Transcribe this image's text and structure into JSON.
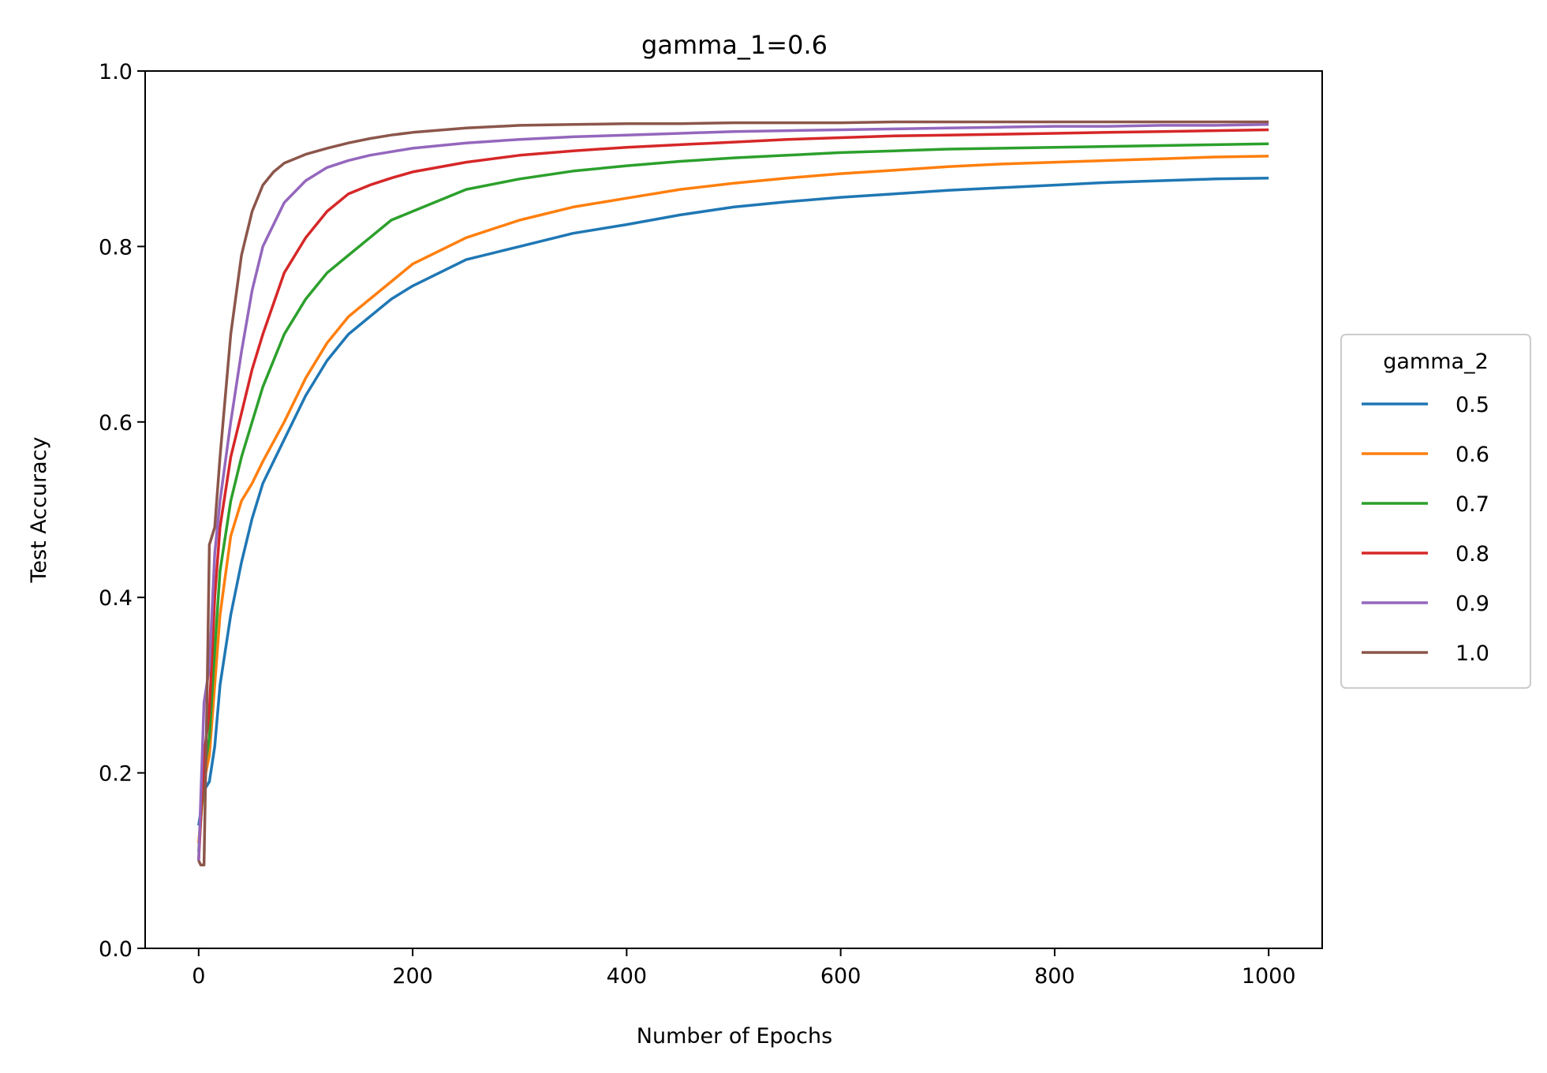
{
  "chart_data": {
    "type": "line",
    "title": "gamma_1=0.6",
    "xlabel": "Number of Epochs",
    "ylabel": "Test Accuracy",
    "xlim": [
      -50,
      1050
    ],
    "ylim": [
      0.0,
      1.0
    ],
    "xticks": [
      0,
      200,
      400,
      600,
      800,
      1000
    ],
    "yticks": [
      0.0,
      0.2,
      0.4,
      0.6,
      0.8,
      1.0
    ],
    "xtick_labels": [
      "0",
      "200",
      "400",
      "600",
      "800",
      "1000"
    ],
    "ytick_labels": [
      "0.0",
      "0.2",
      "0.4",
      "0.6",
      "0.8",
      "1.0"
    ],
    "grid": false,
    "legend": {
      "title": "gamma_2",
      "placement": "center-right outside"
    },
    "series": [
      {
        "name": "0.5",
        "color": "#1f77b4",
        "x": [
          0,
          5,
          10,
          15,
          20,
          30,
          40,
          50,
          60,
          80,
          100,
          120,
          140,
          160,
          180,
          200,
          250,
          300,
          350,
          400,
          450,
          500,
          550,
          600,
          650,
          700,
          750,
          800,
          850,
          900,
          950,
          1000
        ],
        "y": [
          0.14,
          0.18,
          0.19,
          0.23,
          0.3,
          0.38,
          0.44,
          0.49,
          0.53,
          0.58,
          0.63,
          0.67,
          0.7,
          0.72,
          0.74,
          0.755,
          0.785,
          0.8,
          0.815,
          0.825,
          0.836,
          0.845,
          0.851,
          0.856,
          0.86,
          0.864,
          0.867,
          0.87,
          0.873,
          0.875,
          0.877,
          0.878
        ]
      },
      {
        "name": "0.6",
        "color": "#ff7f0e",
        "x": [
          0,
          5,
          10,
          15,
          20,
          30,
          40,
          50,
          60,
          80,
          100,
          120,
          140,
          160,
          180,
          200,
          250,
          300,
          350,
          400,
          450,
          500,
          550,
          600,
          650,
          700,
          750,
          800,
          850,
          900,
          950,
          1000
        ],
        "y": [
          0.12,
          0.19,
          0.22,
          0.3,
          0.38,
          0.47,
          0.51,
          0.53,
          0.555,
          0.6,
          0.65,
          0.69,
          0.72,
          0.74,
          0.76,
          0.78,
          0.81,
          0.83,
          0.845,
          0.855,
          0.865,
          0.872,
          0.878,
          0.883,
          0.887,
          0.891,
          0.894,
          0.896,
          0.898,
          0.9,
          0.902,
          0.903
        ]
      },
      {
        "name": "0.7",
        "color": "#2ca02c",
        "x": [
          0,
          5,
          10,
          15,
          20,
          30,
          40,
          50,
          60,
          80,
          100,
          120,
          140,
          160,
          180,
          200,
          250,
          300,
          350,
          400,
          450,
          500,
          550,
          600,
          650,
          700,
          750,
          800,
          850,
          900,
          950,
          1000
        ],
        "y": [
          0.11,
          0.2,
          0.24,
          0.34,
          0.43,
          0.51,
          0.56,
          0.6,
          0.64,
          0.7,
          0.74,
          0.77,
          0.79,
          0.81,
          0.83,
          0.84,
          0.865,
          0.877,
          0.886,
          0.892,
          0.897,
          0.901,
          0.904,
          0.907,
          0.909,
          0.911,
          0.912,
          0.913,
          0.914,
          0.915,
          0.916,
          0.917
        ]
      },
      {
        "name": "0.8",
        "color": "#d62728",
        "x": [
          0,
          5,
          10,
          15,
          20,
          30,
          40,
          50,
          60,
          80,
          100,
          120,
          140,
          160,
          180,
          200,
          250,
          300,
          350,
          400,
          450,
          500,
          550,
          600,
          650,
          700,
          750,
          800,
          850,
          900,
          950,
          1000
        ],
        "y": [
          0.1,
          0.22,
          0.27,
          0.4,
          0.48,
          0.56,
          0.61,
          0.66,
          0.7,
          0.77,
          0.81,
          0.84,
          0.86,
          0.87,
          0.878,
          0.885,
          0.896,
          0.904,
          0.909,
          0.913,
          0.916,
          0.919,
          0.922,
          0.924,
          0.926,
          0.927,
          0.928,
          0.929,
          0.93,
          0.931,
          0.932,
          0.933
        ]
      },
      {
        "name": "0.9",
        "color": "#9467bd",
        "x": [
          0,
          5,
          10,
          15,
          20,
          30,
          40,
          50,
          60,
          80,
          100,
          120,
          140,
          160,
          180,
          200,
          250,
          300,
          350,
          400,
          450,
          500,
          550,
          600,
          650,
          700,
          750,
          800,
          850,
          900,
          950,
          1000
        ],
        "y": [
          0.1,
          0.28,
          0.32,
          0.45,
          0.51,
          0.6,
          0.68,
          0.75,
          0.8,
          0.85,
          0.875,
          0.89,
          0.898,
          0.904,
          0.908,
          0.912,
          0.918,
          0.922,
          0.925,
          0.927,
          0.929,
          0.931,
          0.932,
          0.933,
          0.934,
          0.935,
          0.936,
          0.937,
          0.937,
          0.938,
          0.938,
          0.939
        ]
      },
      {
        "name": "1.0",
        "color": "#8c564b",
        "x": [
          0,
          2,
          5,
          8,
          10,
          15,
          20,
          30,
          40,
          50,
          60,
          70,
          80,
          100,
          120,
          140,
          160,
          180,
          200,
          250,
          300,
          350,
          400,
          450,
          500,
          550,
          600,
          650,
          700,
          750,
          800,
          850,
          900,
          950,
          1000
        ],
        "y": [
          0.1,
          0.095,
          0.095,
          0.3,
          0.46,
          0.48,
          0.56,
          0.7,
          0.79,
          0.84,
          0.87,
          0.885,
          0.895,
          0.905,
          0.912,
          0.918,
          0.923,
          0.927,
          0.93,
          0.935,
          0.938,
          0.939,
          0.94,
          0.94,
          0.941,
          0.941,
          0.941,
          0.942,
          0.942,
          0.942,
          0.942,
          0.942,
          0.942,
          0.942,
          0.942
        ]
      }
    ]
  }
}
